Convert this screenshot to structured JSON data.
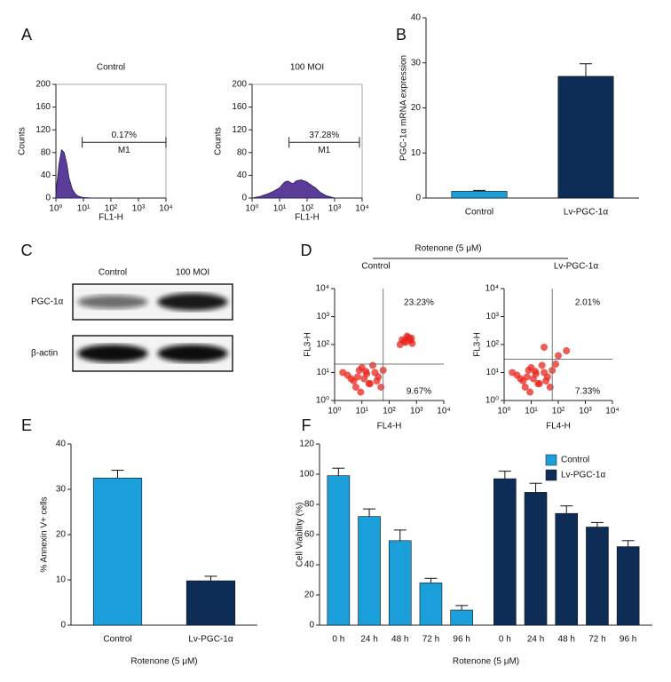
{
  "panel_labels": [
    "A",
    "B",
    "C",
    "D",
    "E",
    "F"
  ],
  "chart_data": [
    {
      "type": "area",
      "title": "Control",
      "xlabel": "FL1-H",
      "ylabel": "Counts",
      "color": "#5b3d99",
      "frame": true,
      "xscale": "log",
      "xlim": [
        1,
        10000
      ],
      "xticks": [
        {
          "value": 1,
          "label": "10⁰"
        },
        {
          "value": 10,
          "label": "10¹"
        },
        {
          "value": 100,
          "label": "10²"
        },
        {
          "value": 1000,
          "label": "10³"
        },
        {
          "value": 10000,
          "label": "10⁴"
        }
      ],
      "ylim": [
        0,
        200
      ],
      "yticks": [
        0,
        40,
        80,
        120,
        160,
        200
      ],
      "x": [
        1,
        1.3,
        1.6,
        2,
        2.5,
        3,
        4,
        5,
        6,
        8,
        10,
        15,
        20
      ],
      "values": [
        10,
        60,
        85,
        80,
        60,
        35,
        15,
        8,
        4,
        2,
        1,
        0.5,
        0
      ],
      "gate": {
        "x": [
          9,
          10000
        ],
        "y": 98
      },
      "annotations": [
        "0.17%",
        "M1"
      ]
    },
    {
      "type": "area",
      "title": "100 MOI",
      "xlabel": "FL1-H",
      "ylabel": "Counts",
      "color": "#5b3d99",
      "frame": true,
      "xscale": "log",
      "xlim": [
        1,
        10000
      ],
      "xticks": [
        {
          "value": 1,
          "label": "10⁰"
        },
        {
          "value": 10,
          "label": "10¹"
        },
        {
          "value": 100,
          "label": "10²"
        },
        {
          "value": 1000,
          "label": "10³"
        },
        {
          "value": 10000,
          "label": "10⁴"
        }
      ],
      "ylim": [
        0,
        200
      ],
      "yticks": [
        0,
        40,
        80,
        120,
        160,
        200
      ],
      "x": [
        1,
        2,
        4,
        6,
        10,
        15,
        20,
        30,
        40,
        60,
        80,
        100,
        150,
        200,
        300,
        500,
        1000
      ],
      "values": [
        0,
        3,
        8,
        12,
        18,
        28,
        30,
        25,
        30,
        32,
        30,
        28,
        22,
        18,
        10,
        4,
        0
      ],
      "gate": {
        "x": [
          22,
          8000
        ],
        "y": 98
      },
      "annotations": [
        "37.28%",
        "M1"
      ]
    },
    {
      "type": "bar",
      "ylabel": "PGC-1α mRNA expression",
      "categories": [
        "Control",
        "Lv-PGC-1α"
      ],
      "values": [
        1.5,
        27
      ],
      "errors": [
        0.2,
        2.8
      ],
      "colors": [
        "#1a9fdb",
        "#0d2d57"
      ],
      "ylim": [
        0,
        40
      ],
      "yticks": [
        0,
        10,
        20,
        30,
        40
      ]
    },
    {
      "type": "blot",
      "columns": [
        "Control",
        "100 MOI"
      ],
      "color": "#111",
      "rows": [
        {
          "name": "PGC-1α",
          "values": [
            0.6,
            0.95
          ]
        },
        {
          "name": "β-actin",
          "values": [
            1,
            1
          ]
        }
      ]
    },
    {
      "type": "scatter",
      "header": "Rotenone (5 μM)",
      "title": "Control",
      "xlabel": "FL4-H",
      "ylabel": "FL3-H",
      "color": "#e8261c",
      "xscale": "log",
      "yscale": "log",
      "xlim": [
        1,
        10000
      ],
      "ylim": [
        1,
        10000
      ],
      "xticks": [
        {
          "value": 1,
          "label": "10⁰"
        },
        {
          "value": 10,
          "label": "10¹"
        },
        {
          "value": 100,
          "label": "10²"
        },
        {
          "value": 1000,
          "label": "10³"
        },
        {
          "value": 10000,
          "label": "10⁴"
        }
      ],
      "yticks": [
        {
          "value": 1,
          "label": "10⁰"
        },
        {
          "value": 10,
          "label": "10¹"
        },
        {
          "value": 100,
          "label": "10²"
        },
        {
          "value": 1000,
          "label": "10³"
        },
        {
          "value": 10000,
          "label": "10⁴"
        }
      ],
      "x": [
        3,
        5,
        8,
        12,
        20,
        30,
        6,
        10,
        15,
        4,
        25,
        40,
        9,
        18,
        60,
        2,
        7,
        14,
        35,
        50,
        300,
        400,
        500,
        600,
        700,
        450,
        350,
        550,
        250,
        650
      ],
      "y": [
        8,
        5,
        12,
        6,
        4,
        10,
        3,
        15,
        9,
        6,
        18,
        7,
        2,
        4,
        12,
        10,
        7,
        11,
        5,
        3,
        150,
        120,
        180,
        140,
        110,
        200,
        130,
        160,
        100,
        170
      ],
      "gate": {
        "x": 60,
        "y": 20
      },
      "quadrant_labels": [
        "23.23%",
        "9.67%"
      ]
    },
    {
      "type": "scatter",
      "title": "Lv-PGC-1α",
      "xlabel": "FL4-H",
      "ylabel": "FL3-H",
      "color": "#e8261c",
      "xscale": "log",
      "yscale": "log",
      "xlim": [
        1,
        10000
      ],
      "ylim": [
        1,
        10000
      ],
      "xticks": [
        {
          "value": 1,
          "label": "10⁰"
        },
        {
          "value": 10,
          "label": "10¹"
        },
        {
          "value": 100,
          "label": "10²"
        },
        {
          "value": 1000,
          "label": "10³"
        },
        {
          "value": 10000,
          "label": "10⁴"
        }
      ],
      "yticks": [
        {
          "value": 1,
          "label": "10⁰"
        },
        {
          "value": 10,
          "label": "10¹"
        },
        {
          "value": 100,
          "label": "10²"
        },
        {
          "value": 1000,
          "label": "10³"
        },
        {
          "value": 10000,
          "label": "10⁴"
        }
      ],
      "x": [
        3,
        5,
        8,
        12,
        20,
        30,
        6,
        10,
        15,
        4,
        25,
        40,
        9,
        18,
        60,
        2,
        7,
        14,
        35,
        50,
        80,
        100,
        200,
        30
      ],
      "y": [
        8,
        5,
        12,
        6,
        4,
        10,
        3,
        15,
        9,
        6,
        18,
        7,
        2,
        4,
        12,
        10,
        7,
        11,
        5,
        3,
        20,
        40,
        60,
        80
      ],
      "gate": {
        "x": 60,
        "y": 30
      },
      "quadrant_labels": [
        "2.01%",
        "7.33%"
      ]
    },
    {
      "type": "bar",
      "xlabel": "Rotenone (5 μM)",
      "ylabel": "% Annexin V+ cells",
      "categories": [
        "Control",
        "Lv-PGC-1α"
      ],
      "values": [
        32.5,
        9.8
      ],
      "errors": [
        1.7,
        1.0
      ],
      "colors": [
        "#1a9fdb",
        "#0d2d57"
      ],
      "ylim": [
        0,
        40
      ],
      "yticks": [
        0,
        10,
        20,
        30,
        40
      ]
    },
    {
      "type": "bar",
      "xlabel": "Rotenone (5 μM)",
      "ylabel": "Cell Viability (%)",
      "legend": "upper right",
      "categories": [
        "0 h",
        "24 h",
        "48 h",
        "72 h",
        "96 h"
      ],
      "series": [
        {
          "name": "Control",
          "color": "#1a9fdb",
          "values": [
            99,
            72,
            56,
            28,
            10
          ],
          "errors": [
            5,
            5,
            7,
            3,
            3
          ]
        },
        {
          "name": "Lv-PGC-1α",
          "color": "#0d2d57",
          "values": [
            97,
            88,
            74,
            65,
            52
          ],
          "errors": [
            5,
            6,
            5,
            3,
            4
          ]
        }
      ],
      "ylim": [
        0,
        120
      ],
      "yticks": [
        0,
        20,
        40,
        60,
        80,
        100,
        120
      ]
    }
  ]
}
